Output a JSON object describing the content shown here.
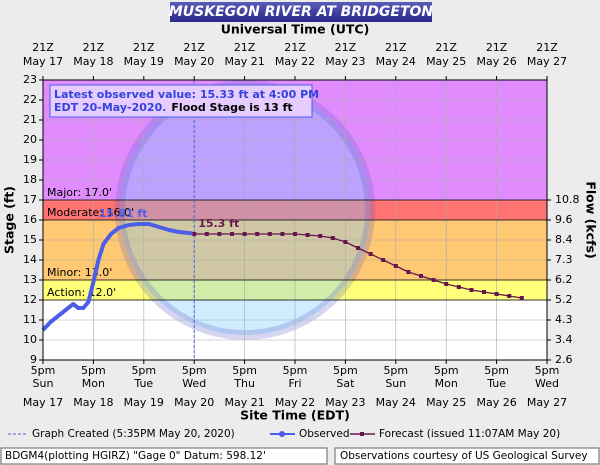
{
  "chart_data": {
    "type": "hydrograph",
    "title": "MUSKEGON RIVER AT BRIDGETON",
    "top_axis_label": "Universal Time (UTC)",
    "x_label": "Site Time (EDT)",
    "y_label": "Stage (ft)",
    "y2_label": "Flow (kcfs)",
    "xlim": [
      0,
      10
    ],
    "ylim": [
      9,
      23
    ],
    "yticks": [
      9,
      10,
      11,
      12,
      13,
      14,
      15,
      16,
      17,
      18,
      19,
      20,
      21,
      22,
      23
    ],
    "xticks": [
      {
        "value": 0,
        "label": "5pm",
        "day": "Sun",
        "date": "May 17",
        "utc": "21Z",
        "utc_date": "May 17"
      },
      {
        "value": 1,
        "label": "5pm",
        "day": "Mon",
        "date": "May 18",
        "utc": "21Z",
        "utc_date": "May 18"
      },
      {
        "value": 2,
        "label": "5pm",
        "day": "Tue",
        "date": "May 19",
        "utc": "21Z",
        "utc_date": "May 19"
      },
      {
        "value": 3,
        "label": "5pm",
        "day": "Wed",
        "date": "May 20",
        "utc": "21Z",
        "utc_date": "May 20"
      },
      {
        "value": 4,
        "label": "5pm",
        "day": "Thu",
        "date": "May 21",
        "utc": "21Z",
        "utc_date": "May 21"
      },
      {
        "value": 5,
        "label": "5pm",
        "day": "Fri",
        "date": "May 22",
        "utc": "21Z",
        "utc_date": "May 22"
      },
      {
        "value": 6,
        "label": "5pm",
        "day": "Sat",
        "date": "May 23",
        "utc": "21Z",
        "utc_date": "May 23"
      },
      {
        "value": 7,
        "label": "5pm",
        "day": "Sun",
        "date": "May 24",
        "utc": "21Z",
        "utc_date": "May 24"
      },
      {
        "value": 8,
        "label": "5pm",
        "day": "Mon",
        "date": "May 25",
        "utc": "21Z",
        "utc_date": "May 25"
      },
      {
        "value": 9,
        "label": "5pm",
        "day": "Tue",
        "date": "May 26",
        "utc": "21Z",
        "utc_date": "May 26"
      },
      {
        "value": 10,
        "label": "5pm",
        "day": "Wed",
        "date": "May 27",
        "utc": "21Z",
        "utc_date": "May 27"
      }
    ],
    "flow_ticks": [
      {
        "stage": 17,
        "flow": 10.8
      },
      {
        "stage": 16,
        "flow": 9.6
      },
      {
        "stage": 15,
        "flow": 8.4
      },
      {
        "stage": 14,
        "flow": 7.3
      },
      {
        "stage": 13,
        "flow": 6.2
      },
      {
        "stage": 12,
        "flow": 5.2
      },
      {
        "stage": 11,
        "flow": 4.3
      },
      {
        "stage": 10,
        "flow": 3.4
      },
      {
        "stage": 9,
        "flow": 2.6
      }
    ],
    "flood_categories": [
      {
        "label": "Major: 17.0'",
        "stage": 17,
        "color": "#e08cff"
      },
      {
        "label": "Moderate: 16.0'",
        "stage": 16,
        "color": "#ff7373"
      },
      {
        "label": "Minor: 13.0'",
        "stage": 13,
        "color": "#ffc873"
      },
      {
        "label": "Action: 12.0'",
        "stage": 12,
        "color": "#ffff7a"
      }
    ],
    "grid": true,
    "graph_created": 3,
    "series": [
      {
        "name": "Observed",
        "color": "#4a5ee8",
        "x": [
          0,
          0.15,
          0.3,
          0.45,
          0.6,
          0.7,
          0.8,
          0.9,
          1.0,
          1.1,
          1.2,
          1.35,
          1.5,
          1.7,
          1.9,
          2.1,
          2.3,
          2.5,
          2.7,
          2.96
        ],
        "values": [
          10.5,
          10.9,
          11.2,
          11.5,
          11.8,
          11.6,
          11.6,
          11.9,
          12.9,
          14.0,
          14.8,
          15.3,
          15.6,
          15.75,
          15.8,
          15.8,
          15.65,
          15.5,
          15.4,
          15.33
        ]
      },
      {
        "name": "Forecast (issued 11:07AM May 20)",
        "color": "#66164f",
        "x": [
          3,
          3.25,
          3.5,
          3.75,
          4,
          4.25,
          4.5,
          4.75,
          5,
          5.25,
          5.5,
          5.75,
          6,
          6.25,
          6.5,
          6.75,
          7,
          7.25,
          7.5,
          7.75,
          8,
          8.25,
          8.5,
          8.75,
          9,
          9.25,
          9.5
        ],
        "values": [
          15.3,
          15.3,
          15.3,
          15.3,
          15.3,
          15.3,
          15.3,
          15.3,
          15.3,
          15.25,
          15.2,
          15.1,
          14.9,
          14.6,
          14.3,
          14.0,
          13.7,
          13.4,
          13.2,
          13.0,
          12.8,
          12.65,
          12.5,
          12.4,
          12.3,
          12.2,
          12.1
        ]
      }
    ],
    "annotations": [
      {
        "text": "15.81 ft",
        "x": 1.9,
        "y": 15.81
      },
      {
        "text": "15.3 ft",
        "x": 3,
        "y": 15.3
      }
    ],
    "info_box": {
      "line1": "Latest observed value: 15.33 ft at 4:00 PM",
      "line2": "EDT 20-May-2020.",
      "line2b": "Flood Stage is 13 ft"
    },
    "legend": {
      "created": "Graph Created (5:35PM May 20, 2020)"
    },
    "footer": {
      "left": "BDGM4(plotting HGIRZ) \"Gage 0\" Datum: 598.12'",
      "right": "Observations courtesy of US Geological Survey"
    }
  }
}
